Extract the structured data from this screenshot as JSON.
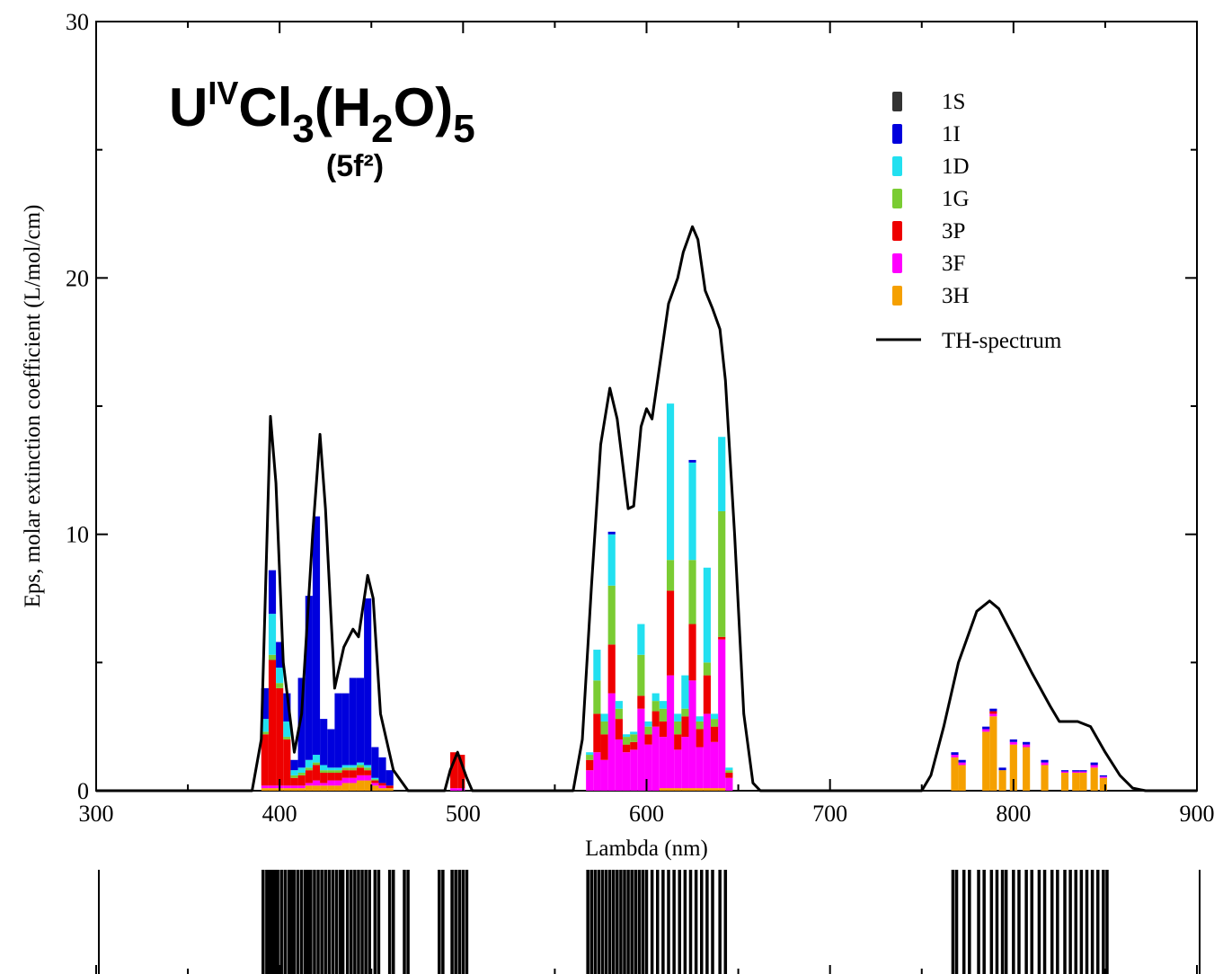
{
  "chart_data": {
    "type": "combo",
    "title_parts": [
      "U",
      "IV",
      "Cl",
      "3",
      "(H",
      "2",
      "O)",
      "5"
    ],
    "subtitle": "(5f²)",
    "x_label": "Lambda (nm)",
    "y_label": "Eps, molar extinction coefficient (L/mol/cm)",
    "xlim": [
      300,
      900
    ],
    "ylim": [
      0,
      30
    ],
    "xticks": [
      300,
      400,
      500,
      600,
      700,
      800,
      900
    ],
    "yticks": [
      0,
      10,
      20,
      30
    ],
    "xminorticks": [
      350,
      450,
      550,
      650,
      750,
      850
    ],
    "yminorticks": [
      5,
      15,
      25
    ],
    "grid": false,
    "legend": "upper right",
    "x": [
      392,
      396,
      400,
      404,
      408,
      412,
      416,
      420,
      424,
      428,
      432,
      436,
      440,
      444,
      448,
      452,
      456,
      460,
      495,
      499,
      569,
      573,
      577,
      581,
      585,
      589,
      593,
      597,
      601,
      605,
      609,
      613,
      617,
      621,
      625,
      629,
      633,
      637,
      641,
      645,
      768,
      772,
      785,
      789,
      794,
      800,
      807,
      817,
      828,
      834,
      838,
      844,
      849
    ],
    "series": [
      {
        "name": "1S",
        "color": "#333333",
        "values": [
          0,
          0,
          0,
          0,
          0,
          0,
          0,
          0,
          0,
          0,
          0,
          0,
          0,
          0,
          0,
          0,
          0,
          0,
          0,
          0,
          0,
          0,
          0,
          0,
          0,
          0,
          0,
          0,
          0,
          0,
          0,
          0,
          0,
          0,
          0,
          0,
          0,
          0,
          0,
          0,
          0,
          0,
          0,
          0,
          0,
          0,
          0,
          0,
          0,
          0,
          0,
          0,
          0
        ]
      },
      {
        "name": "1I",
        "color": "#0000dd",
        "values": [
          1.2,
          1.7,
          1.0,
          1.1,
          0.4,
          3.5,
          6.4,
          9.3,
          1.8,
          1.5,
          2.9,
          2.8,
          3.4,
          3.3,
          6.5,
          1.2,
          1.0,
          0.6,
          0,
          0,
          0,
          0,
          0,
          0.1,
          0,
          0,
          0,
          0,
          0,
          0,
          0,
          0,
          0,
          0,
          0.1,
          0,
          0,
          0,
          0,
          0,
          0.1,
          0.1,
          0.1,
          0.1,
          0.1,
          0.1,
          0.1,
          0.1,
          0.05,
          0.05,
          0.05,
          0.1,
          0.05
        ]
      },
      {
        "name": "1D",
        "color": "#22e0f0",
        "values": [
          0.5,
          1.6,
          0.6,
          0.6,
          0.2,
          0.2,
          0.3,
          0.3,
          0.2,
          0.1,
          0.1,
          0.1,
          0.1,
          0.1,
          0.1,
          0.05,
          0,
          0,
          0,
          0,
          0.1,
          1.2,
          0.3,
          2.0,
          0.3,
          0.1,
          0.1,
          1.2,
          0.2,
          0.3,
          0.3,
          6.1,
          0.3,
          1.3,
          3.8,
          0.2,
          3.7,
          0.2,
          2.9,
          0.1,
          0,
          0,
          0,
          0,
          0,
          0,
          0,
          0,
          0,
          0,
          0,
          0,
          0
        ]
      },
      {
        "name": "1G",
        "color": "#7acc33",
        "values": [
          0.1,
          0.2,
          0.2,
          0.1,
          0.1,
          0.1,
          0.1,
          0.1,
          0.1,
          0.1,
          0.1,
          0.1,
          0.1,
          0.1,
          0.1,
          0.05,
          0,
          0,
          0,
          0,
          0.2,
          1.3,
          0.5,
          2.3,
          0.4,
          0.3,
          0.3,
          1.6,
          0.3,
          0.4,
          0.5,
          1.2,
          0.5,
          0.3,
          2.5,
          0.3,
          0.5,
          0.3,
          4.9,
          0.1,
          0,
          0,
          0,
          0,
          0,
          0,
          0,
          0,
          0,
          0,
          0,
          0,
          0
        ]
      },
      {
        "name": "3P",
        "color": "#ee0000",
        "values": [
          2.0,
          4.9,
          3.8,
          1.8,
          0.3,
          0.4,
          0.5,
          0.6,
          0.4,
          0.3,
          0.3,
          0.3,
          0.3,
          0.3,
          0.2,
          0.1,
          0.1,
          0.1,
          1.4,
          1.3,
          0.4,
          1.5,
          1.0,
          1.9,
          0.8,
          0.3,
          0.3,
          0.5,
          0.4,
          0.6,
          0.6,
          3.3,
          0.6,
          0.8,
          2.2,
          0.7,
          1.5,
          0.6,
          0.1,
          0.2,
          0,
          0,
          0,
          0.1,
          0,
          0,
          0,
          0,
          0,
          0,
          0,
          0,
          0
        ]
      },
      {
        "name": "3F",
        "color": "#ff00ff",
        "values": [
          0.1,
          0.1,
          0.1,
          0.1,
          0.1,
          0.1,
          0.1,
          0.2,
          0.1,
          0.2,
          0.2,
          0.2,
          0.2,
          0.2,
          0.2,
          0.1,
          0.1,
          0,
          0.1,
          0.1,
          0.8,
          1.5,
          1.2,
          3.8,
          2.0,
          1.5,
          1.6,
          3.2,
          1.8,
          2.5,
          2.0,
          4.4,
          1.5,
          2.0,
          4.2,
          1.6,
          2.9,
          1.8,
          5.8,
          0.5,
          0.1,
          0.1,
          0.1,
          0.1,
          0,
          0.1,
          0.1,
          0.1,
          0.05,
          0.05,
          0.05,
          0.1,
          0.05
        ]
      },
      {
        "name": "3H",
        "color": "#f5a000",
        "values": [
          0.1,
          0.1,
          0.1,
          0.1,
          0.1,
          0.1,
          0.2,
          0.2,
          0.2,
          0.2,
          0.2,
          0.3,
          0.3,
          0.4,
          0.4,
          0.2,
          0.1,
          0.1,
          0,
          0,
          0,
          0,
          0,
          0,
          0,
          0,
          0,
          0,
          0,
          0,
          0.1,
          0.1,
          0.1,
          0.1,
          0.1,
          0.1,
          0.1,
          0.1,
          0.1,
          0,
          1.3,
          1.0,
          2.3,
          2.9,
          0.8,
          1.8,
          1.7,
          1.0,
          0.7,
          0.7,
          0.7,
          0.9,
          0.5
        ]
      }
    ],
    "line": {
      "name": "TH-spectrum",
      "color": "#000000",
      "x": [
        300,
        385,
        390,
        395,
        398,
        402,
        408,
        412,
        418,
        422,
        425,
        430,
        435,
        440,
        443,
        448,
        451,
        455,
        462,
        470,
        490,
        493,
        497,
        502,
        505,
        560,
        565,
        570,
        575,
        580,
        584,
        590,
        593,
        597,
        600,
        603,
        607,
        612,
        617,
        620,
        625,
        628,
        632,
        636,
        640,
        643,
        648,
        653,
        658,
        662,
        750,
        755,
        762,
        770,
        780,
        787,
        792,
        800,
        810,
        820,
        825,
        835,
        842,
        850,
        858,
        865,
        872,
        900
      ],
      "values": [
        0,
        0,
        2,
        14.6,
        12,
        5,
        1.5,
        3,
        10,
        13.9,
        11,
        4,
        5.6,
        6.3,
        6,
        8.4,
        7.5,
        3,
        0.8,
        0,
        0,
        0.8,
        1.5,
        0.5,
        0,
        0,
        2,
        8,
        13.5,
        15.7,
        14.5,
        11,
        11.1,
        14.2,
        14.9,
        14.5,
        16.5,
        19,
        20,
        21,
        22,
        21.5,
        19.5,
        18.8,
        18,
        16,
        10,
        3,
        0.3,
        0,
        0,
        0.6,
        2.5,
        5,
        7,
        7.4,
        7.1,
        6,
        4.6,
        3.3,
        2.7,
        2.7,
        2.5,
        1.5,
        0.6,
        0.1,
        0,
        0
      ]
    },
    "sticks": [
      391,
      393,
      394.5,
      396,
      397.5,
      399,
      401,
      403,
      405,
      406.5,
      408,
      410,
      412,
      414,
      415.5,
      417,
      419,
      421,
      423,
      425,
      427,
      429,
      431,
      433,
      434.5,
      437,
      439,
      441,
      443,
      445,
      447,
      449,
      452,
      454,
      460,
      462,
      468,
      470,
      487,
      489,
      494,
      496,
      498,
      500,
      502,
      568,
      570,
      572,
      574,
      576,
      578,
      580,
      582,
      584,
      586,
      588,
      590,
      592,
      594,
      596,
      598,
      600,
      603,
      606,
      609,
      612,
      615,
      618,
      621,
      624,
      627,
      630,
      633,
      636,
      640,
      643,
      767,
      769,
      773,
      776,
      781,
      784,
      788,
      791,
      794,
      796,
      800,
      803,
      807,
      810,
      814,
      817,
      821,
      824,
      828,
      831,
      834,
      837,
      840,
      843,
      846,
      849,
      851
    ]
  }
}
